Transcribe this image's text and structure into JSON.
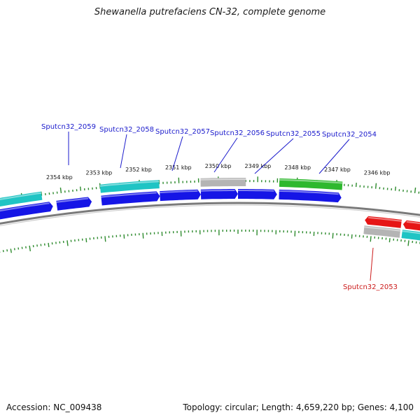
{
  "title": "Shewanella putrefaciens CN-32, complete genome",
  "footer": {
    "accession": "Accession: NC_009438",
    "summary": "Topology: circular; Length: 4,659,220 bp; Genes: 4,100"
  },
  "colors": {
    "forward_gene": "#1515e6",
    "reverse_gene": "#e61515",
    "rna_cyan": "#1fc4c4",
    "grey_feature": "#b4b4b4",
    "green_feature": "#2eb82e",
    "tick": "#2e8b2e",
    "backbone": "#7a7a7a",
    "label_forward": "#1a1acc",
    "label_reverse": "#cc1a1a"
  },
  "axis": {
    "unit": "kbp",
    "tick_labels": [
      "2354 kbp",
      "2353 kbp",
      "2352 kbp",
      "2351 kbp",
      "2350 kbp",
      "2349 kbp",
      "2348 kbp",
      "2347 kbp",
      "2346 kbp"
    ],
    "tick_values_kbp": [
      2354,
      2353,
      2352,
      2351,
      2350,
      2349,
      2348,
      2347,
      2346
    ]
  },
  "genes": [
    {
      "name": "Sputcn32_2059",
      "strand": "forward",
      "kind": "cds",
      "start_kbp": 2353.25,
      "end_kbp": 2354.15
    },
    {
      "name": "Sputcn32_2058",
      "strand": "forward",
      "kind": "cds",
      "start_kbp": 2351.5,
      "end_kbp": 2353.0
    },
    {
      "name": "Sputcn32_2057",
      "strand": "forward",
      "kind": "cds",
      "start_kbp": 2350.45,
      "end_kbp": 2351.5
    },
    {
      "name": "Sputcn32_2056",
      "strand": "forward",
      "kind": "cds",
      "start_kbp": 2349.5,
      "end_kbp": 2350.45
    },
    {
      "name": "Sputcn32_2055",
      "strand": "forward",
      "kind": "cds",
      "start_kbp": 2348.5,
      "end_kbp": 2349.5
    },
    {
      "name": "Sputcn32_2054",
      "strand": "forward",
      "kind": "cds",
      "start_kbp": 2346.85,
      "end_kbp": 2348.45
    },
    {
      "name": "Sputcn32_2053",
      "strand": "reverse",
      "kind": "cds",
      "start_kbp": 2345.55,
      "end_kbp": 2346.2
    }
  ]
}
